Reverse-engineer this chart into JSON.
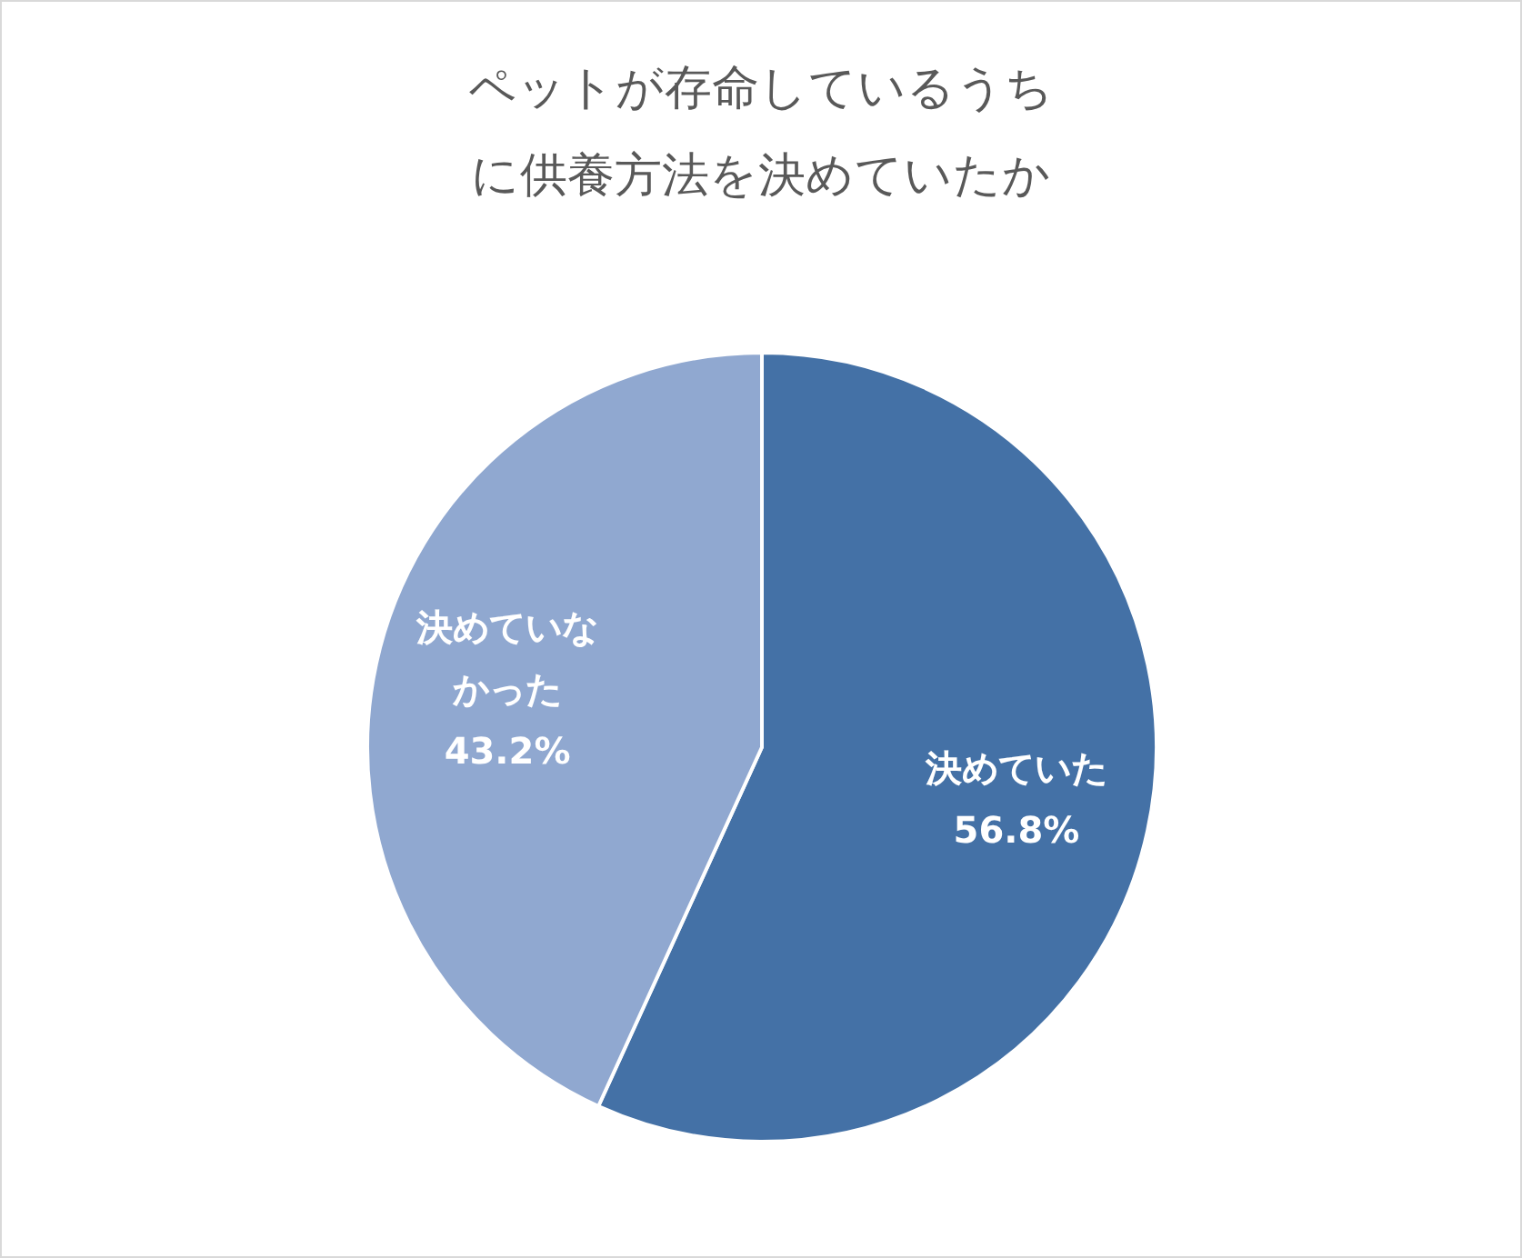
{
  "chart_data": {
    "type": "pie",
    "title": "ペットが存命しているうちに供養方法を決めていたか",
    "categories": [
      "決めていた",
      "決めていなかった"
    ],
    "values": [
      56.8,
      43.2
    ],
    "colors": [
      "#4471a6",
      "#90a8d0"
    ],
    "value_labels": [
      "56.8%",
      "43.2%"
    ],
    "legend": false
  }
}
